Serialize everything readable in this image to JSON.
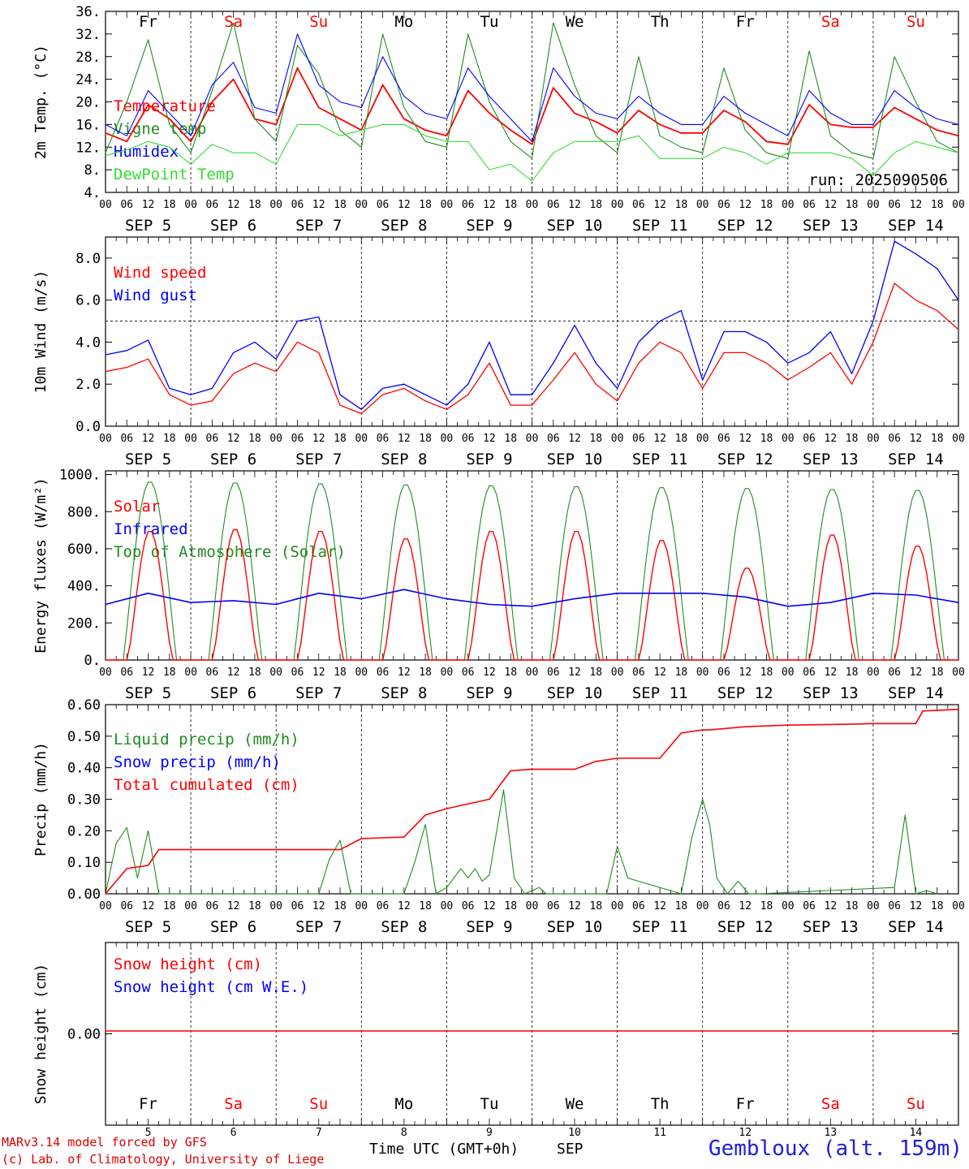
{
  "chart_data": [
    {
      "type": "line",
      "ylabel": "2m Temp. (°C)",
      "yticks": [
        "4.",
        "8.",
        "12.",
        "16.",
        "20.",
        "24.",
        "28.",
        "32.",
        "36."
      ],
      "ylim": [
        4,
        36
      ],
      "annotation": "run: 2025090506",
      "legend_placement": "left",
      "x_hours": [
        0,
        6,
        12,
        18,
        24,
        30,
        36,
        42,
        48,
        54,
        60,
        66,
        72,
        78,
        84,
        90,
        96,
        102,
        108,
        114,
        120,
        126,
        132,
        138,
        144,
        150,
        156,
        162,
        168,
        174,
        180,
        186,
        192,
        198,
        204,
        210,
        216,
        222,
        228,
        234,
        240
      ],
      "series": [
        {
          "name": "Temperature",
          "color": "#ff0000",
          "values": [
            14.5,
            13,
            19.5,
            17,
            13,
            20,
            24,
            17,
            16,
            26,
            19,
            17,
            15,
            23,
            17,
            15,
            14,
            22,
            18,
            15,
            12.5,
            22.5,
            18,
            16.5,
            14.5,
            18.5,
            16,
            14.5,
            14.5,
            18.5,
            16.5,
            13,
            12.5,
            19.5,
            16,
            15.5,
            15.5,
            19,
            17,
            15,
            14
          ]
        },
        {
          "name": "Vigne temp",
          "color": "#1e8c1e",
          "values": [
            11,
            20,
            31,
            16,
            11,
            22,
            34,
            17,
            13,
            30,
            25,
            15,
            12,
            32,
            19,
            13,
            12,
            32,
            20,
            13,
            10,
            34,
            23,
            14,
            11,
            28,
            14,
            12,
            11,
            26,
            15,
            11,
            10,
            29,
            14,
            11,
            10,
            28,
            20,
            13,
            11
          ]
        },
        {
          "name": "Humidex",
          "color": "#0000ff",
          "values": [
            16,
            14,
            22,
            18,
            14,
            23,
            27,
            19,
            18,
            32,
            23,
            20,
            19,
            28,
            21,
            18,
            17,
            26,
            21,
            17,
            13,
            26,
            21,
            18,
            17,
            21,
            18,
            16,
            16,
            21,
            18,
            16,
            14,
            22,
            18,
            16,
            16,
            22,
            19,
            17,
            16
          ]
        },
        {
          "name": "DewPoint Temp",
          "color": "#33dd33",
          "values": [
            10.5,
            11.5,
            13,
            12,
            9,
            12.5,
            11,
            11,
            9,
            16,
            16,
            14,
            15,
            16,
            16,
            14,
            13,
            13,
            8,
            9,
            6,
            11,
            13,
            13,
            13,
            14,
            10,
            10,
            10,
            12,
            11,
            9,
            11,
            11,
            11,
            10,
            7,
            11,
            13,
            12,
            11
          ]
        }
      ]
    },
    {
      "type": "line",
      "ylabel": "10m Wind (m/s)",
      "yticks": [
        "0.0",
        "2.0",
        "4.0",
        "6.0",
        "8.0"
      ],
      "ylim": [
        0,
        9
      ],
      "reference_line": 5.0,
      "legend_placement": "left",
      "x_hours": [
        0,
        6,
        12,
        18,
        24,
        30,
        36,
        42,
        48,
        54,
        60,
        66,
        72,
        78,
        84,
        90,
        96,
        102,
        108,
        114,
        120,
        126,
        132,
        138,
        144,
        150,
        156,
        162,
        168,
        174,
        180,
        186,
        192,
        198,
        204,
        210,
        216,
        222,
        228,
        234,
        240
      ],
      "series": [
        {
          "name": "Wind speed",
          "color": "#ff0000",
          "values": [
            2.6,
            2.8,
            3.2,
            1.5,
            1,
            1.2,
            2.5,
            3,
            2.6,
            4,
            3.5,
            1,
            0.6,
            1.5,
            1.8,
            1.2,
            0.8,
            1.5,
            3,
            1,
            1,
            2.2,
            3.5,
            2,
            1.2,
            3,
            4,
            3.5,
            1.8,
            3.5,
            3.5,
            3,
            2.2,
            2.8,
            3.5,
            2,
            4,
            6.8,
            6,
            5.5,
            4.6
          ]
        },
        {
          "name": "Wind gust",
          "color": "#0000ff",
          "values": [
            3.4,
            3.6,
            4.1,
            1.8,
            1.5,
            1.8,
            3.5,
            4,
            3.2,
            5,
            5.2,
            1.5,
            0.8,
            1.8,
            2,
            1.5,
            1,
            2,
            4,
            1.5,
            1.5,
            3,
            4.8,
            3,
            1.8,
            4,
            5,
            5.5,
            2.2,
            4.5,
            4.5,
            4,
            3,
            3.5,
            4.5,
            2.5,
            5,
            8.8,
            8.2,
            7.5,
            6
          ]
        }
      ]
    },
    {
      "type": "line",
      "ylabel": "Energy fluxes (W/m²)",
      "yticks": [
        "0.",
        "200.",
        "400.",
        "600.",
        "800.",
        "1000."
      ],
      "ylim": [
        0,
        1000
      ],
      "legend_placement": "left",
      "series": [
        {
          "name": "Solar",
          "color": "#ff0000",
          "days_peak": [
            700,
            710,
            700,
            660,
            700,
            700,
            650,
            500,
            680,
            620
          ]
        },
        {
          "name": "Infrared",
          "color": "#0000ff",
          "x_hours": [
            0,
            12,
            24,
            36,
            48,
            60,
            72,
            84,
            96,
            108,
            120,
            132,
            144,
            156,
            168,
            180,
            192,
            204,
            216,
            228,
            240
          ],
          "values": [
            300,
            360,
            310,
            320,
            300,
            360,
            330,
            380,
            330,
            300,
            290,
            330,
            360,
            360,
            360,
            340,
            290,
            310,
            360,
            350,
            310
          ]
        },
        {
          "name": "Top of Atmosphere (Solar)",
          "color": "#1e8c1e",
          "days_peak": [
            965,
            960,
            955,
            950,
            945,
            940,
            935,
            930,
            925,
            920
          ]
        }
      ]
    },
    {
      "type": "line",
      "ylabel": "Precip (mm/h)",
      "yticks": [
        "0.00",
        "0.10",
        "0.20",
        "0.30",
        "0.40",
        "0.50",
        "0.60"
      ],
      "ylim": [
        0,
        0.6
      ],
      "legend_placement": "left",
      "series": [
        {
          "name": "Liquid precip (mm/h)",
          "color": "#1e8c1e",
          "x_hours": [
            0,
            3,
            6,
            9,
            12,
            15,
            18,
            60,
            63,
            66,
            69,
            72,
            84,
            87,
            90,
            93,
            96,
            100,
            102,
            104,
            106,
            108,
            112,
            115,
            118,
            122,
            124,
            141,
            144,
            147,
            162,
            165,
            168,
            170,
            172,
            175,
            178,
            181,
            184,
            222,
            225,
            228,
            231,
            234
          ],
          "values": [
            0,
            0.16,
            0.21,
            0.05,
            0.2,
            0,
            0,
            0,
            0.11,
            0.17,
            0,
            0,
            0,
            0.1,
            0.22,
            0,
            0.02,
            0.08,
            0.05,
            0.08,
            0.04,
            0.06,
            0.33,
            0.05,
            0,
            0.02,
            0,
            0,
            0.15,
            0.05,
            0,
            0.18,
            0.3,
            0.22,
            0.05,
            0,
            0.04,
            0,
            0,
            0.02,
            0.25,
            0,
            0.01,
            0
          ]
        },
        {
          "name": "Snow precip (mm/h)",
          "color": "#0000ff",
          "values": [
            0
          ]
        },
        {
          "name": "Total cumulated (cm)",
          "color": "#ff0000",
          "x_hours": [
            0,
            6,
            12,
            15,
            48,
            66,
            72,
            84,
            90,
            96,
            108,
            114,
            120,
            132,
            138,
            144,
            156,
            162,
            168,
            170,
            180,
            192,
            210,
            216,
            228,
            230,
            240
          ],
          "values": [
            0,
            0.08,
            0.09,
            0.14,
            0.14,
            0.14,
            0.175,
            0.18,
            0.25,
            0.27,
            0.3,
            0.39,
            0.395,
            0.395,
            0.42,
            0.43,
            0.43,
            0.51,
            0.52,
            0.52,
            0.53,
            0.535,
            0.538,
            0.54,
            0.54,
            0.58,
            0.585
          ]
        }
      ]
    },
    {
      "type": "line",
      "ylabel": "Snow height (cm)",
      "yticks": [
        "0.00"
      ],
      "legend_placement": "left",
      "series": [
        {
          "name": "Snow height (cm)",
          "color": "#ff0000",
          "values": [
            0,
            0
          ]
        },
        {
          "name": "Snow height (cm W.E.)",
          "color": "#0000ff",
          "values": [
            0,
            0
          ]
        }
      ]
    }
  ],
  "x_axis": {
    "hour_ticks": [
      "00",
      "06",
      "12",
      "18"
    ],
    "final_tick": "00",
    "date_labels": [
      "SEP  5",
      "SEP  6",
      "SEP  7",
      "SEP  8",
      "SEP  9",
      "SEP 10",
      "SEP 11",
      "SEP 12",
      "SEP 13",
      "SEP 14"
    ],
    "day_names": [
      "Fr",
      "Sa",
      "Su",
      "Mo",
      "Tu",
      "We",
      "Th",
      "Fr",
      "Sa",
      "Su"
    ],
    "day_numbers": [
      "5",
      "6",
      "7",
      "8",
      "9",
      "10",
      "11",
      "12",
      "13",
      "14"
    ],
    "weekend_color": "#ff0000",
    "weekday_color": "#000000",
    "xlabel": "Time UTC (GMT+0h)",
    "month": "SEP"
  },
  "footer": {
    "model_line": "MARv3.14 model forced by GFS",
    "credit_line": "(c) Lab. of Climatology, University of Liege",
    "station": "Gembloux (alt. 159m)"
  }
}
